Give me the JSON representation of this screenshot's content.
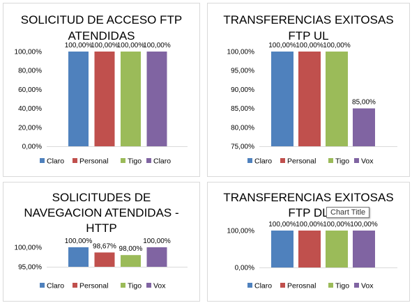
{
  "chart_data": [
    {
      "type": "bar",
      "title_lines": [
        "SOLICITUD DE ACCESO FTP",
        "ATENDIDAS"
      ],
      "categories": [
        "Claro",
        "Personal",
        "Tigo",
        "Claro"
      ],
      "values": [
        100,
        100,
        100,
        100
      ],
      "value_labels": [
        "100,00%",
        "100,00%",
        "100,00%",
        "100,00%"
      ],
      "colors": [
        "#4F81BD",
        "#C0504D",
        "#9BBB59",
        "#8064A2"
      ],
      "ylim": [
        0,
        100
      ],
      "yticks": [
        "0,00%",
        "20,00%",
        "40,00%",
        "60,00%",
        "80,00%",
        "100,00%"
      ],
      "grid": false,
      "legend": "bottom"
    },
    {
      "type": "bar",
      "title_lines": [
        "TRANSFERENCIAS EXITOSAS",
        "FTP UL"
      ],
      "categories": [
        "Claro",
        "Personal",
        "Tigo",
        "Vox"
      ],
      "values": [
        100,
        100,
        100,
        85
      ],
      "value_labels": [
        "100,00%",
        "100,00%",
        "100,00%",
        "85,00%"
      ],
      "colors": [
        "#4F81BD",
        "#C0504D",
        "#9BBB59",
        "#8064A2"
      ],
      "ylim": [
        75,
        100
      ],
      "yticks": [
        "75,00%",
        "80,00%",
        "85,00%",
        "90,00%",
        "95,00%",
        "100,00%"
      ],
      "grid": false,
      "legend": "bottom"
    },
    {
      "type": "bar",
      "title_lines": [
        "SOLICITUDES DE",
        "NAVEGACION ATENDIDAS -",
        "HTTP"
      ],
      "categories": [
        "Claro",
        "Personal",
        "Tigo",
        "Vox"
      ],
      "values": [
        100,
        98.67,
        98,
        100
      ],
      "value_labels": [
        "100,00%",
        "98,67%",
        "98,00%",
        "100,00%"
      ],
      "colors": [
        "#4F81BD",
        "#C0504D",
        "#9BBB59",
        "#8064A2"
      ],
      "ylim": [
        95,
        100
      ],
      "yticks": [
        "95,00%",
        "100,00%"
      ],
      "grid": false,
      "legend": "bottom"
    },
    {
      "type": "bar",
      "title_lines": [
        "TRANSFERENCIAS EXITOSAS",
        "FTP DL"
      ],
      "categories": [
        "Claro",
        "Perosnal",
        "Tigo",
        "Vox"
      ],
      "values": [
        100,
        100,
        100,
        100
      ],
      "value_labels": [
        "100,00%",
        "100,00%",
        "100,00%",
        "100,00%"
      ],
      "colors": [
        "#4F81BD",
        "#C0504D",
        "#9BBB59",
        "#8064A2"
      ],
      "ylim": [
        0,
        100
      ],
      "yticks": [
        "0,00%",
        "100,00%"
      ],
      "grid": false,
      "legend": "bottom"
    }
  ],
  "tooltip": {
    "text": "Chart Title"
  }
}
